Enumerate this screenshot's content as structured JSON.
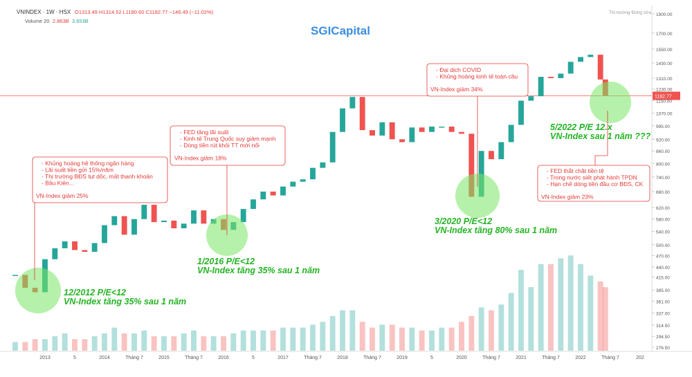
{
  "chart_data": {
    "type": "candle-line",
    "symbol": "VNINDEX · 1W · HSX",
    "ohlc": "O1313.49 H1314.52 L1180.60 C1182.77 −146.49 (−11.02%)",
    "volume_legend": "Volume 20",
    "volume_legend_values": [
      "2.863B",
      "3.653B"
    ],
    "market_status": "Thị trường Đóng cửa",
    "title": "SGICapital",
    "last_price": 1182.77,
    "log_scale": true,
    "x": [
      "2012-07",
      "2012-09",
      "2012-11",
      "2013-01",
      "2013-03",
      "2013-05",
      "2013-07",
      "2013-09",
      "2013-11",
      "2014-01",
      "2014-03",
      "2014-05",
      "2014-07",
      "2014-09",
      "2014-11",
      "2015-01",
      "2015-03",
      "2015-05",
      "2015-07",
      "2015-09",
      "2015-11",
      "2016-01",
      "2016-03",
      "2016-05",
      "2016-07",
      "2016-09",
      "2016-11",
      "2017-01",
      "2017-03",
      "2017-05",
      "2017-07",
      "2017-09",
      "2017-11",
      "2018-01",
      "2018-03",
      "2018-05",
      "2018-07",
      "2018-09",
      "2018-11",
      "2019-01",
      "2019-03",
      "2019-05",
      "2019-07",
      "2019-09",
      "2019-11",
      "2020-01",
      "2020-03",
      "2020-05",
      "2020-07",
      "2020-09",
      "2020-11",
      "2021-01",
      "2021-03",
      "2021-05",
      "2021-07",
      "2021-09",
      "2021-11",
      "2022-01",
      "2022-03",
      "2022-05",
      "2022-06"
    ],
    "series": [
      {
        "name": "VNINDEX",
        "color": "#26a69a",
        "down_color": "#ef5350",
        "values": [
          420,
          390,
          380,
          460,
          490,
          510,
          485,
          480,
          505,
          560,
          590,
          530,
          580,
          630,
          570,
          575,
          550,
          565,
          610,
          565,
          580,
          545,
          570,
          615,
          650,
          680,
          665,
          700,
          720,
          730,
          780,
          805,
          960,
          1100,
          1175,
          970,
          940,
          1015,
          920,
          905,
          985,
          960,
          990,
          990,
          960,
          950,
          660,
          860,
          820,
          905,
          1000,
          1150,
          1180,
          1320,
          1310,
          1345,
          1440,
          1480,
          1500,
          1300,
          1182.77
        ]
      },
      {
        "name": "Volume",
        "values": [
          3,
          3,
          4,
          4,
          5,
          6,
          4,
          4,
          5,
          6,
          8,
          6,
          6,
          7,
          5,
          5,
          5,
          6,
          7,
          5,
          5,
          5,
          6,
          7,
          7,
          7,
          7,
          8,
          8,
          8,
          9,
          10,
          12,
          14,
          14,
          10,
          8,
          9,
          9,
          8,
          8,
          7,
          7,
          8,
          8,
          10,
          12,
          15,
          14,
          16,
          20,
          28,
          22,
          30,
          30,
          32,
          33,
          30,
          26,
          24,
          22
        ]
      }
    ],
    "ylim": [
      276.5,
      1900
    ],
    "vol_ylim": [
      0,
      40
    ],
    "yticks": [
      {
        "value": 1900,
        "label": "1900.00"
      },
      {
        "value": 1700,
        "label": "1700.00"
      },
      {
        "value": 1550,
        "label": "1550.00"
      },
      {
        "value": 1430,
        "label": "1430.00"
      },
      {
        "value": 1310,
        "label": "1310.00"
      },
      {
        "value": 1230,
        "label": "1230.00"
      },
      {
        "value": 1150,
        "label": "1150.00"
      },
      {
        "value": 1070,
        "label": "1070.00"
      },
      {
        "value": 995,
        "label": "995.00"
      },
      {
        "value": 920,
        "label": "920.00"
      },
      {
        "value": 860,
        "label": "860.00"
      },
      {
        "value": 800,
        "label": "800.00"
      },
      {
        "value": 740,
        "label": "740.00"
      },
      {
        "value": 680,
        "label": "680.00"
      },
      {
        "value": 620,
        "label": "620.00"
      },
      {
        "value": 580,
        "label": "580.00"
      },
      {
        "value": 540,
        "label": "540.00"
      },
      {
        "value": 500,
        "label": "500.00"
      },
      {
        "value": 470,
        "label": "470.00"
      },
      {
        "value": 440,
        "label": "440.00"
      },
      {
        "value": 415,
        "label": "415.00"
      },
      {
        "value": 385,
        "label": "385.00"
      },
      {
        "value": 361,
        "label": "361.00"
      },
      {
        "value": 337,
        "label": "337.00"
      },
      {
        "value": 314.5,
        "label": "314.50"
      },
      {
        "value": 294.5,
        "label": "294.50"
      },
      {
        "value": 276.5,
        "label": "276.50"
      }
    ],
    "xticks": [
      {
        "value": "2013-01",
        "label": "2013"
      },
      {
        "value": "2013-07",
        "label": "5"
      },
      {
        "value": "2014-01",
        "label": "2014"
      },
      {
        "value": "2014-07",
        "label": "Tháng 7"
      },
      {
        "value": "2015-01",
        "label": "2015"
      },
      {
        "value": "2015-07",
        "label": "Tháng 7"
      },
      {
        "value": "2016-01",
        "label": "2016"
      },
      {
        "value": "2016-07",
        "label": "5"
      },
      {
        "value": "2017-01",
        "label": "2017"
      },
      {
        "value": "2017-07",
        "label": "Tháng 7"
      },
      {
        "value": "2018-01",
        "label": "2018"
      },
      {
        "value": "2018-07",
        "label": "Tháng 7"
      },
      {
        "value": "2019-01",
        "label": "2019"
      },
      {
        "value": "2019-07",
        "label": "5"
      },
      {
        "value": "2020-01",
        "label": "2020"
      },
      {
        "value": "2020-07",
        "label": "Tháng 7"
      },
      {
        "value": "2021-01",
        "label": "2021"
      },
      {
        "value": "2021-07",
        "label": "Tháng 7"
      },
      {
        "value": "2022-01",
        "label": "2022"
      },
      {
        "value": "2022-07",
        "label": "Tháng 7"
      },
      {
        "value": "2023-01",
        "label": "202"
      }
    ],
    "annotations": [
      {
        "items": [
          "- Khủng hoảng hệ thống ngân hàng",
          "- Lãi suất tiền gửi 15%/năm",
          "- Thị trường BĐS tụt dốc, mất thanh khoản",
          "- Bầu Kiên..."
        ],
        "result": "VN-Index giảm 25%"
      },
      {
        "items": [
          "- FED tăng lãi suất",
          "- Kinh tế Trung Quốc suy giảm mạnh",
          "- Dòng tiền rút khỏi TT mới nổi"
        ],
        "result": "VN-Index giảm 18%"
      },
      {
        "items": [
          "- Đại dịch COVID",
          "- Khủng hoảng kinh tế toàn cầu"
        ],
        "result": "VN-Index giảm 34%"
      },
      {
        "items": [
          "- FED thắt chặt tiền tệ",
          "- Trong nước siết phát hành TPDN",
          "- Hạn chế dòng tiền đầu cơ BĐS, CK"
        ],
        "result": "VN-Index giảm 23%"
      }
    ],
    "highlights": [
      {
        "line1": "12/2012  P/E<12",
        "line2": "VN-Index tăng 35% sau 1 năm"
      },
      {
        "line1": "1/2016  P/E<12",
        "line2": "VN-Index tăng 35% sau 1 năm"
      },
      {
        "line1": "3/2020  P/E<12",
        "line2": "VN-Index tăng 80% sau 1 năm"
      },
      {
        "line1": "5/2022  P/E 12.x",
        "line2": "VN-Index sau 1 năm ???"
      }
    ]
  }
}
